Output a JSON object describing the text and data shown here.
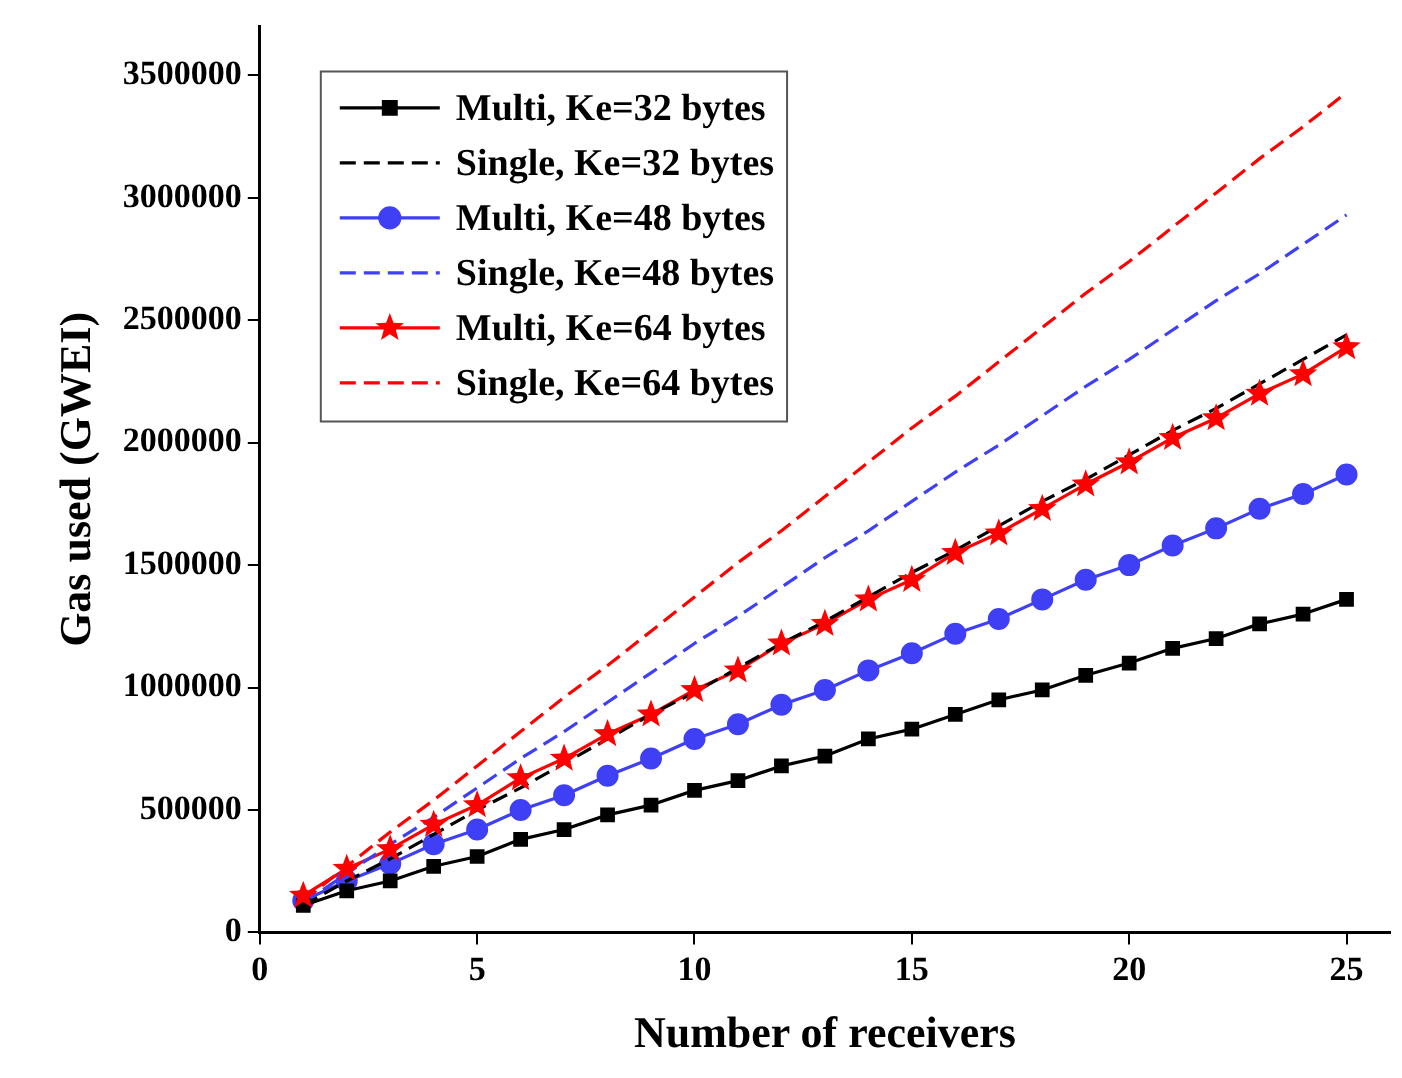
{
  "chart_data": {
    "type": "line",
    "xlabel": "Number of receivers",
    "ylabel": "Gas used (GWEI)",
    "x": [
      1,
      2,
      3,
      4,
      5,
      6,
      7,
      8,
      9,
      10,
      11,
      12,
      13,
      14,
      15,
      16,
      17,
      18,
      19,
      20,
      21,
      22,
      23,
      24,
      25
    ],
    "xlim": [
      0,
      26
    ],
    "xticks": [
      0,
      5,
      10,
      15,
      20,
      25
    ],
    "ylim": [
      0,
      3700000
    ],
    "yticks": [
      0,
      500000,
      1000000,
      1500000,
      2000000,
      2500000,
      3000000,
      3500000
    ],
    "grid": false,
    "legend": "top left",
    "series": [
      {
        "name": "Multi, Ke=32 bytes",
        "color": "#000000",
        "marker": "square",
        "line_style": "solid",
        "values": [
          110000,
          170000,
          210000,
          270000,
          310000,
          380000,
          420000,
          480000,
          520000,
          580000,
          620000,
          680000,
          720000,
          790000,
          830000,
          890000,
          950000,
          990000,
          1050000,
          1100000,
          1160000,
          1200000,
          1260000,
          1300000,
          1360000
        ]
      },
      {
        "name": "Single, Ke=32 bytes",
        "color": "#000000",
        "marker": "none",
        "line_style": "dashed",
        "values": [
          110000,
          210000,
          300000,
          400000,
          500000,
          590000,
          690000,
          790000,
          890000,
          980000,
          1080000,
          1180000,
          1270000,
          1370000,
          1470000,
          1560000,
          1660000,
          1760000,
          1850000,
          1950000,
          2050000,
          2140000,
          2240000,
          2340000,
          2440000
        ]
      },
      {
        "name": "Multi, Ke=48 bytes",
        "color": "#3f3ff5",
        "marker": "circle",
        "line_style": "solid",
        "values": [
          130000,
          210000,
          280000,
          360000,
          420000,
          500000,
          560000,
          640000,
          710000,
          790000,
          850000,
          930000,
          990000,
          1070000,
          1140000,
          1220000,
          1280000,
          1360000,
          1440000,
          1500000,
          1580000,
          1650000,
          1730000,
          1790000,
          1870000
        ]
      },
      {
        "name": "Single, Ke=48 bytes",
        "color": "#3f3ff5",
        "marker": "none",
        "line_style": "dashed",
        "values": [
          120000,
          240000,
          360000,
          470000,
          590000,
          710000,
          820000,
          940000,
          1060000,
          1180000,
          1290000,
          1410000,
          1530000,
          1640000,
          1760000,
          1880000,
          1990000,
          2110000,
          2230000,
          2340000,
          2460000,
          2580000,
          2690000,
          2810000,
          2930000
        ]
      },
      {
        "name": "Multi, Ke=64 bytes",
        "color": "#ff0000",
        "marker": "star",
        "line_style": "solid",
        "values": [
          150000,
          260000,
          340000,
          440000,
          520000,
          630000,
          710000,
          810000,
          890000,
          990000,
          1070000,
          1180000,
          1260000,
          1360000,
          1440000,
          1550000,
          1630000,
          1730000,
          1830000,
          1920000,
          2020000,
          2100000,
          2200000,
          2280000,
          2390000
        ]
      },
      {
        "name": "Single, Ke=64 bytes",
        "color": "#ff0000",
        "marker": "none",
        "line_style": "dashed",
        "values": [
          130000,
          270000,
          410000,
          540000,
          680000,
          820000,
          960000,
          1090000,
          1230000,
          1370000,
          1510000,
          1640000,
          1780000,
          1920000,
          2060000,
          2190000,
          2330000,
          2470000,
          2610000,
          2740000,
          2880000,
          3020000,
          3160000,
          3290000,
          3430000
        ]
      }
    ]
  }
}
